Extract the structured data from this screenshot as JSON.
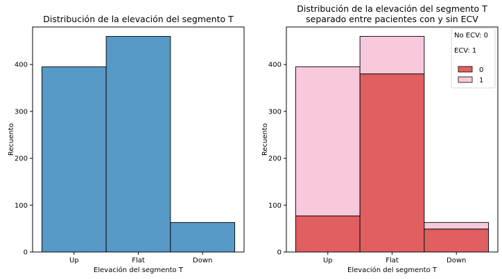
{
  "chart_data": [
    {
      "type": "bar",
      "title": "Distribución de la elevación del segmento T",
      "xlabel": "Elevación del segmento T",
      "ylabel": "Recuento",
      "categories": [
        "Up",
        "Flat",
        "Down"
      ],
      "values": [
        395,
        460,
        63
      ],
      "ylim": [
        0,
        480
      ],
      "yticks": [
        0,
        100,
        200,
        300,
        400
      ],
      "color": "#5799c7",
      "grid": false
    },
    {
      "type": "bar",
      "stacked": true,
      "title_lines": [
        "Distribución de la elevación del segmento T",
        "separado entre pacientes con y sin ECV"
      ],
      "xlabel": "Elevación del segmento T",
      "ylabel": "Recuento",
      "categories": [
        "Up",
        "Flat",
        "Down"
      ],
      "series": [
        {
          "name": "0",
          "values": [
            77,
            380,
            49
          ],
          "color": "#e05f60"
        },
        {
          "name": "1",
          "values": [
            318,
            80,
            14
          ],
          "color": "#f8c8dc"
        }
      ],
      "ylim": [
        0,
        480
      ],
      "yticks": [
        0,
        100,
        200,
        300,
        400
      ],
      "legend": {
        "placement": "top-right",
        "notes": [
          "No ECV: 0",
          "ECV: 1"
        ]
      },
      "grid": false
    }
  ]
}
